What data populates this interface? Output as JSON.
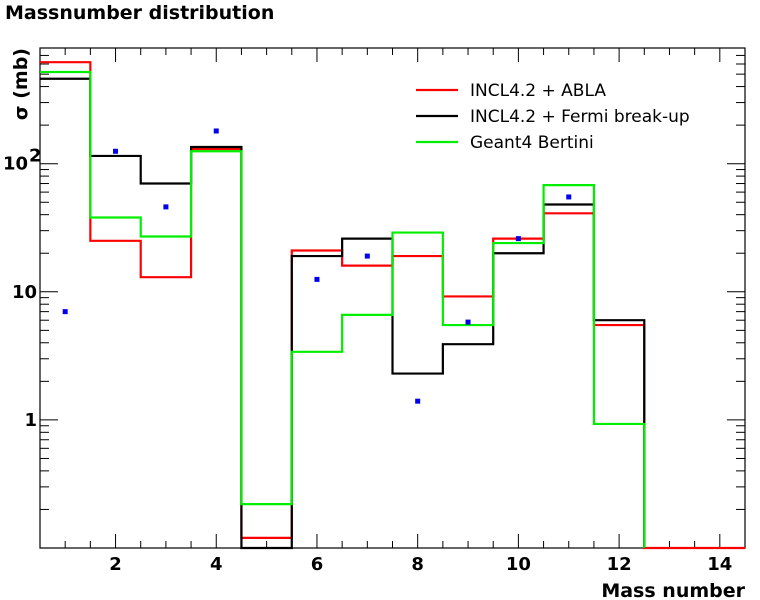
{
  "chart_data": {
    "type": "line",
    "title": "Massnumber distribution",
    "xlabel": "Mass number",
    "ylabel": "σ (mb)",
    "xlim": [
      0.5,
      14.5
    ],
    "ylim": [
      0.1,
      800
    ],
    "yscale": "log",
    "x_ticks": [
      2,
      4,
      6,
      8,
      10,
      12,
      14
    ],
    "y_ticks": [
      {
        "value": 1,
        "label": "1"
      },
      {
        "value": 10,
        "label": "10"
      },
      {
        "value": 100,
        "label": "10",
        "exponent": "2"
      }
    ],
    "grid": false,
    "legend_position": "top-right",
    "series": [
      {
        "name": "INCL4.2 + ABLA",
        "color": "#ff0000",
        "style": "step",
        "x": [
          1,
          2,
          3,
          4,
          5,
          6,
          7,
          8,
          9,
          10,
          11,
          12,
          13,
          14
        ],
        "values": [
          620,
          25,
          13,
          130,
          0.12,
          21,
          16,
          19,
          9.2,
          26,
          41,
          5.5,
          0.1,
          0.1
        ]
      },
      {
        "name": "INCL4.2 + Fermi break-up",
        "color": "#000000",
        "style": "step",
        "x": [
          1,
          2,
          3,
          4,
          5,
          6,
          7,
          8,
          9,
          10,
          11,
          12
        ],
        "values": [
          460,
          115,
          70,
          135,
          0.1,
          19,
          26,
          2.3,
          3.9,
          20,
          48,
          6
        ]
      },
      {
        "name": "Geant4 Bertini",
        "color": "#00ee00",
        "style": "step",
        "x": [
          1,
          2,
          3,
          4,
          5,
          6,
          7,
          8,
          9,
          10,
          11,
          12
        ],
        "values": [
          520,
          38,
          27,
          125,
          0.22,
          3.4,
          6.6,
          29,
          5.5,
          24,
          68,
          0.93
        ]
      },
      {
        "name": "",
        "color": "#0000ee",
        "style": "points",
        "x": [
          1,
          2,
          3,
          4,
          6,
          7,
          8,
          9,
          10,
          11
        ],
        "values": [
          7,
          125,
          46,
          180,
          12.5,
          19,
          1.4,
          5.8,
          26,
          55
        ]
      }
    ]
  }
}
